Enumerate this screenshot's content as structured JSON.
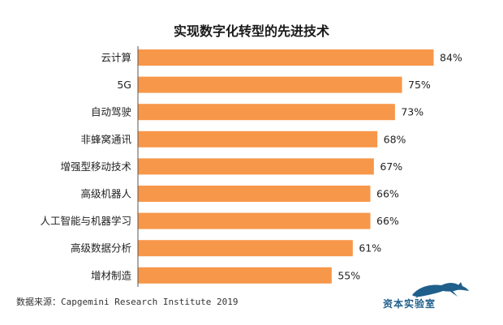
{
  "chart_data": {
    "type": "bar",
    "orientation": "horizontal",
    "title": "实现数字化转型的先进技术",
    "categories": [
      "云计算",
      "5G",
      "自动驾驶",
      "非蜂窝通讯",
      "增强型移动技术",
      "高级机器人",
      "人工智能与机器学习",
      "高级数据分析",
      "增材制造"
    ],
    "values": [
      84,
      75,
      73,
      68,
      67,
      66,
      66,
      61,
      55
    ],
    "value_labels": [
      "84%",
      "75%",
      "73%",
      "68%",
      "67%",
      "66%",
      "66%",
      "61%",
      "55%"
    ],
    "xlim": [
      0,
      84
    ],
    "grid": false,
    "colors": {
      "bar": "#F7974A",
      "axis": "#555555"
    }
  },
  "source": "数据来源：Capgemini Research Institute 2019",
  "logo": {
    "text": "资本实验室",
    "icon": "leaping-panther-icon"
  }
}
